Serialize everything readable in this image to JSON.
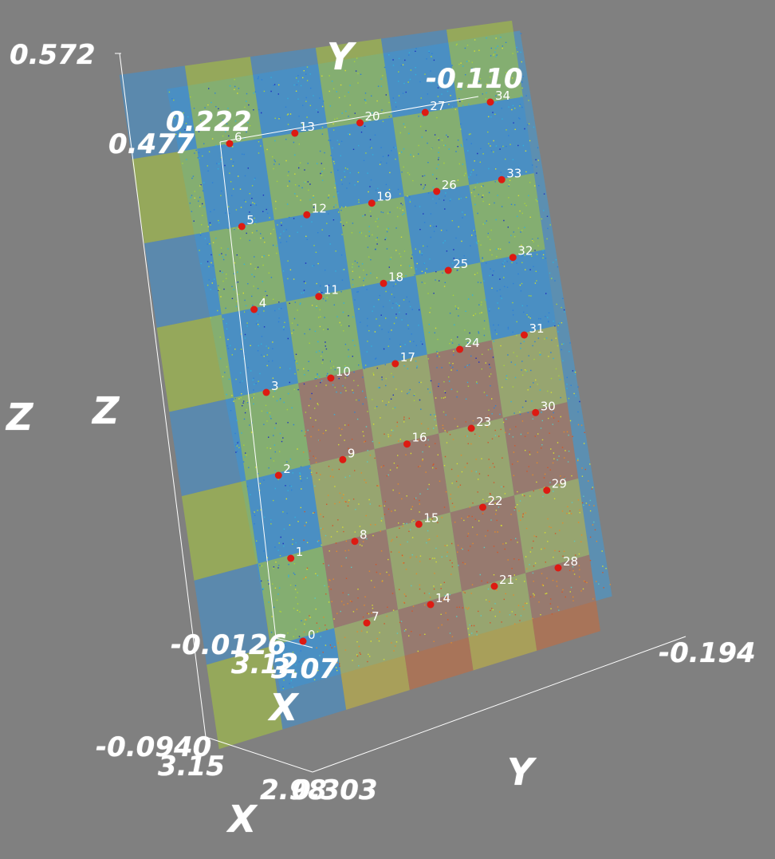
{
  "colors": {
    "background": "#808080",
    "axis_line": "#ffffff",
    "marker": "#dd1a12",
    "marker_label": "#ffffff",
    "cloud_palette": [
      "#1c2fc0",
      "#2e7fd6",
      "#33b0dc",
      "#5bc8c0",
      "#a9d23a",
      "#d7e030",
      "#e38a2a",
      "#d0562a"
    ]
  },
  "axis_labels": {
    "z_outer": "Z",
    "z_inner": "Z",
    "y_top": "Y",
    "y_bottom": "Y",
    "x_inner": "X",
    "x_outer": "X"
  },
  "tick_labels": {
    "z_max_outer": "0.572",
    "z_max_inner": "0.477",
    "y_top_left": "0.222",
    "y_top_right": "-0.110",
    "z_min_inner": "-0.0126",
    "z_min_outer": "-0.0940",
    "x_inner_a": "3.12",
    "x_inner_b": "3.07",
    "x_outer_a": "3.15",
    "x_outer_b": "2.98",
    "y_bottom_left": "0.303",
    "y_bottom_right": "-0.194"
  },
  "markers": [
    "0",
    "1",
    "2",
    "3",
    "4",
    "5",
    "6",
    "7",
    "8",
    "9",
    "10",
    "11",
    "12",
    "13",
    "14",
    "15",
    "16",
    "17",
    "18",
    "19",
    "20",
    "21",
    "22",
    "23",
    "24",
    "25",
    "26",
    "27",
    "28",
    "29",
    "30",
    "31",
    "32",
    "33",
    "34"
  ]
}
